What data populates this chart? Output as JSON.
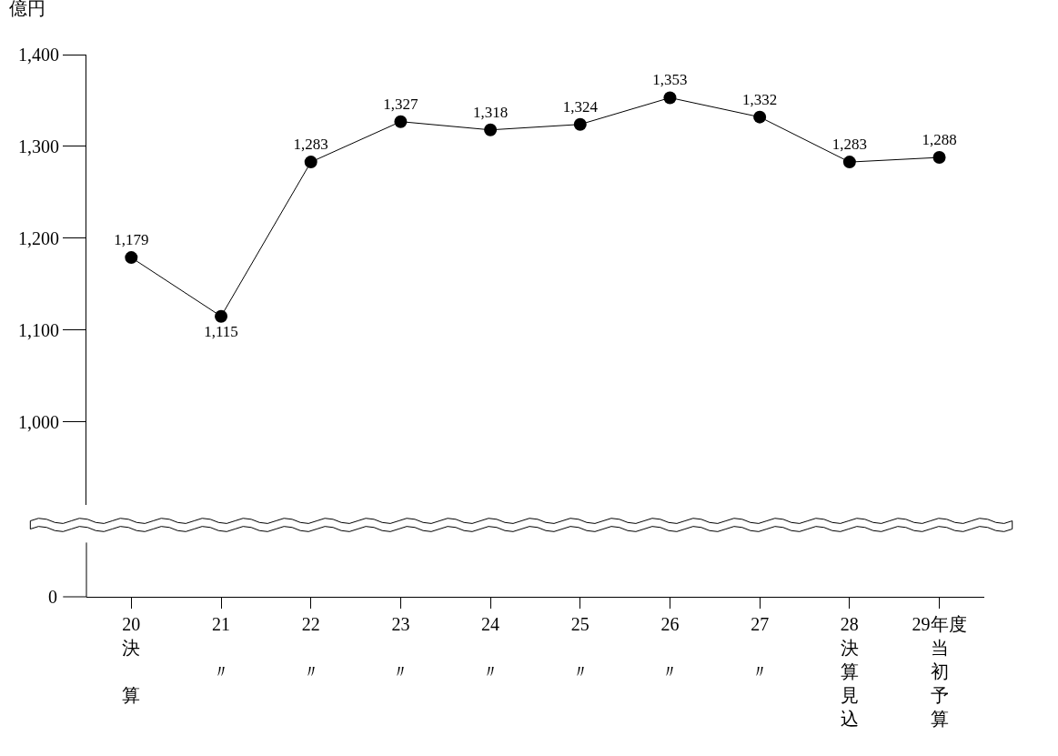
{
  "chart_data": {
    "type": "line",
    "ylabel": "億円",
    "categories": [
      "20決算",
      "21〃",
      "22〃",
      "23〃",
      "24〃",
      "25〃",
      "26〃",
      "27〃",
      "28決算見込",
      "29年度当初予算"
    ],
    "series": [
      {
        "color": "#000000",
        "values": [
          1179,
          1115,
          1283,
          1327,
          1318,
          1324,
          1353,
          1332,
          1283,
          1288
        ],
        "value_labels": [
          "1,179",
          "1,115",
          "1,283",
          "1,327",
          "1,318",
          "1,324",
          "1,353",
          "1,332",
          "1,283",
          "1,288"
        ]
      }
    ],
    "ylim": [
      910,
      1400
    ],
    "yticks": [
      {
        "value": 1000,
        "label": "1,000"
      },
      {
        "value": 1100,
        "label": "1,100"
      },
      {
        "value": 1200,
        "label": "1,200"
      },
      {
        "value": 1300,
        "label": "1,300"
      },
      {
        "value": 1400,
        "label": "1,400"
      }
    ],
    "annotations": [
      "0"
    ],
    "marker": "circle",
    "line_style": "solid"
  }
}
